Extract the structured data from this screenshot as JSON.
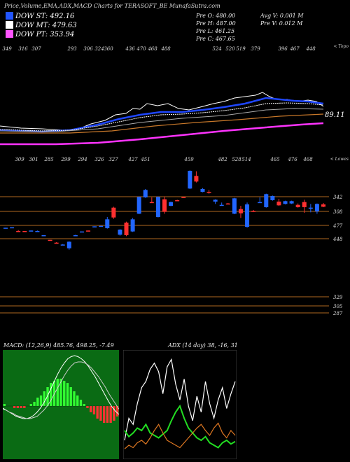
{
  "header": {
    "title": "Price,Volume,EMA,ADX,MACD Charts for TERASOFT_BE MunafaSutra.com",
    "legend": [
      {
        "label": "DOW ST: 492.16",
        "color": "#2255ff"
      },
      {
        "label": "DOW MT: 479.63",
        "color": "#ffffff"
      },
      {
        "label": "DOW PT: 353.94",
        "color": "#ff55ff"
      }
    ],
    "stats": {
      "open": "Pre  O: 480.00",
      "high": "Pre  H: 487.00",
      "low": "Pre  L: 461.25",
      "close": "Pre  C: 467.65",
      "avg_volume": "Avg V: 0.001 M",
      "prev_volume": "Pre  V: 0.012  M"
    }
  },
  "upper_panel": {
    "top_labels": [
      "349",
      "316",
      "307",
      "293",
      "306",
      "324",
      "360",
      "436",
      "470",
      "468",
      "488",
      "524",
      "520",
      "519",
      "379",
      "396",
      "467",
      "448"
    ],
    "caption": "< Topo",
    "price_label": "89.11",
    "colors": {
      "ema_short": "#1e46ff",
      "ema_mid": "#ffffff",
      "ema_long": "#c8782a",
      "ema_longest": "#ff33ff"
    }
  },
  "lower_panel": {
    "top_labels": [
      "309",
      "301",
      "285",
      "299",
      "294",
      "326",
      "327",
      "427",
      "451",
      "459",
      "482",
      "528",
      "514",
      "465",
      "476",
      "468"
    ],
    "caption": "< Lowes",
    "levels": [
      "342",
      "308",
      "477",
      "448",
      "329",
      "305",
      "287"
    ]
  },
  "chart_data": [
    {
      "type": "candlestick",
      "title": "",
      "candle_colors": {
        "up": "#2266ff",
        "down": "#ff3030"
      },
      "candles": [
        {
          "o": 309,
          "h": 309,
          "l": 308,
          "c": 309
        },
        {
          "o": 309,
          "h": 310,
          "l": 308,
          "c": 310
        },
        {
          "o": 302,
          "h": 304,
          "l": 301,
          "c": 301
        },
        {
          "o": 302,
          "h": 302,
          "l": 300,
          "c": 301
        },
        {
          "o": 302,
          "h": 303,
          "l": 302,
          "c": 303
        },
        {
          "o": 302,
          "h": 303,
          "l": 301,
          "c": 302
        },
        {
          "o": 293,
          "h": 293,
          "l": 292,
          "c": 293
        },
        {
          "o": 283,
          "h": 283,
          "l": 282,
          "c": 282
        },
        {
          "o": 277,
          "h": 278,
          "l": 275,
          "c": 276
        },
        {
          "o": 273,
          "h": 274,
          "l": 272,
          "c": 273
        },
        {
          "o": 265,
          "h": 280,
          "l": 262,
          "c": 279
        },
        {
          "o": 293,
          "h": 294,
          "l": 292,
          "c": 293
        },
        {
          "o": 301,
          "h": 301,
          "l": 300,
          "c": 301
        },
        {
          "o": 303,
          "h": 303,
          "l": 302,
          "c": 302
        },
        {
          "o": 312,
          "h": 312,
          "l": 311,
          "c": 312
        },
        {
          "o": 313,
          "h": 313,
          "l": 312,
          "c": 313
        },
        {
          "o": 308,
          "h": 332,
          "l": 307,
          "c": 327
        },
        {
          "o": 352,
          "h": 354,
          "l": 328,
          "c": 331
        },
        {
          "o": 294,
          "h": 306,
          "l": 292,
          "c": 305
        },
        {
          "o": 320,
          "h": 322,
          "l": 291,
          "c": 293
        },
        {
          "o": 301,
          "h": 330,
          "l": 300,
          "c": 327
        },
        {
          "o": 339,
          "h": 376,
          "l": 338,
          "c": 375
        },
        {
          "o": 374,
          "h": 392,
          "l": 373,
          "c": 390
        },
        {
          "o": 364,
          "h": 374,
          "l": 362,
          "c": 363
        },
        {
          "o": 332,
          "h": 376,
          "l": 331,
          "c": 375
        },
        {
          "o": 370,
          "h": 376,
          "l": 339,
          "c": 343
        },
        {
          "o": 356,
          "h": 365,
          "l": 355,
          "c": 364
        },
        {
          "o": 368,
          "h": 369,
          "l": 366,
          "c": 367
        },
        {
          "o": 375,
          "h": 374,
          "l": 373,
          "c": 374
        },
        {
          "o": 393,
          "h": 432,
          "l": 392,
          "c": 431
        },
        {
          "o": 420,
          "h": 430,
          "l": 406,
          "c": 408
        },
        {
          "o": 386,
          "h": 394,
          "l": 385,
          "c": 392
        },
        {
          "o": 386,
          "h": 390,
          "l": 382,
          "c": 384
        },
        {
          "o": 365,
          "h": 370,
          "l": 360,
          "c": 369
        },
        {
          "o": 357,
          "h": 363,
          "l": 356,
          "c": 358
        },
        {
          "o": 361,
          "h": 362,
          "l": 359,
          "c": 360
        },
        {
          "o": 339,
          "h": 373,
          "l": 338,
          "c": 372
        },
        {
          "o": 349,
          "h": 356,
          "l": 330,
          "c": 340
        },
        {
          "o": 311,
          "h": 363,
          "l": 309,
          "c": 359
        },
        {
          "o": 345,
          "h": 347,
          "l": 343,
          "c": 344
        },
        {
          "o": 363,
          "h": 374,
          "l": 362,
          "c": 364
        },
        {
          "o": 353,
          "h": 382,
          "l": 352,
          "c": 381
        },
        {
          "o": 368,
          "h": 378,
          "l": 367,
          "c": 377
        },
        {
          "o": 365,
          "h": 371,
          "l": 356,
          "c": 357
        },
        {
          "o": 360,
          "h": 367,
          "l": 359,
          "c": 366
        },
        {
          "o": 361,
          "h": 367,
          "l": 360,
          "c": 366
        },
        {
          "o": 358,
          "h": 361,
          "l": 352,
          "c": 353
        },
        {
          "o": 364,
          "h": 369,
          "l": 341,
          "c": 353
        },
        {
          "o": 352,
          "h": 360,
          "l": 342,
          "c": 352
        },
        {
          "o": 344,
          "h": 361,
          "l": 339,
          "c": 360
        },
        {
          "o": 359,
          "h": 362,
          "l": 353,
          "c": 354
        }
      ]
    },
    {
      "type": "line",
      "title": "MACD: (12,26,9) 485.76, 498.25, -7.49",
      "series": [
        {
          "values": [
            -2,
            -4,
            -6,
            -8,
            -10,
            -11,
            -12,
            -12,
            -11,
            -9,
            -6,
            -2,
            3,
            9,
            16,
            23,
            30,
            36,
            41,
            45,
            47,
            48,
            47,
            45,
            42,
            38,
            33,
            28,
            22,
            16,
            10,
            4,
            -1,
            -5,
            -8
          ]
        },
        {
          "values": [
            -3,
            -4,
            -6,
            -7,
            -9,
            -10,
            -11,
            -12,
            -12,
            -11,
            -10,
            -7,
            -4,
            0,
            5,
            11,
            17,
            23,
            29,
            34,
            38,
            41,
            42,
            42,
            41,
            39,
            36,
            32,
            28,
            23,
            18,
            12,
            7,
            2,
            -3
          ]
        }
      ],
      "histogram": [
        1,
        0,
        0,
        -1,
        -1,
        -1,
        -1,
        0,
        1,
        2,
        4,
        5,
        7,
        9,
        11,
        12,
        13,
        13,
        12,
        11,
        9,
        7,
        5,
        3,
        1,
        -1,
        -3,
        -4,
        -6,
        -7,
        -8,
        -8,
        -8,
        -7,
        -5
      ]
    },
    {
      "type": "line",
      "title": "ADX  (14 day) 38, -16, 31",
      "series": [
        {
          "color": "#ffffff",
          "values": [
            12,
            30,
            25,
            42,
            55,
            60,
            70,
            75,
            68,
            50,
            72,
            78,
            58,
            45,
            62,
            40,
            28,
            48,
            35,
            60,
            42,
            30,
            45,
            55,
            38,
            50,
            60
          ]
        },
        {
          "color": "#22dd22",
          "values": [
            20,
            15,
            18,
            22,
            20,
            25,
            18,
            16,
            14,
            17,
            20,
            28,
            35,
            40,
            30,
            22,
            18,
            14,
            12,
            15,
            10,
            8,
            6,
            10,
            12,
            9,
            11
          ]
        },
        {
          "color": "#dd7722",
          "values": [
            5,
            8,
            6,
            10,
            12,
            9,
            14,
            20,
            25,
            18,
            12,
            10,
            8,
            6,
            10,
            14,
            18,
            22,
            25,
            20,
            16,
            22,
            26,
            18,
            14,
            20,
            16
          ]
        }
      ]
    }
  ]
}
